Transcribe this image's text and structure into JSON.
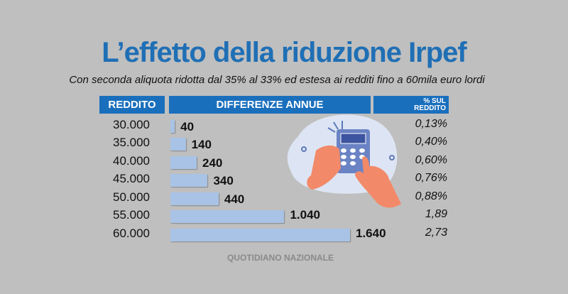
{
  "chart_data": {
    "type": "bar",
    "title": "L’effetto della riduzione Irpef",
    "subtitle": "Con seconda aliquota ridotta dal 35% al 33% ed estesa ai redditi fino a 60mila euro lordi",
    "headers": [
      "REDDITO",
      "DIFFERENZE ANNUE",
      "% SUL REDDITO"
    ],
    "categories": [
      "30.000",
      "35.000",
      "40.000",
      "45.000",
      "50.000",
      "55.000",
      "60.000"
    ],
    "values": [
      40,
      140,
      240,
      340,
      440,
      1040,
      1640
    ],
    "value_labels": [
      "40",
      "140",
      "240",
      "340",
      "440",
      "1.040",
      "1.640"
    ],
    "percent_labels": [
      "0,13%",
      "0,40%",
      "0,60%",
      "0,76%",
      "0,88%",
      "1,89",
      "2,73"
    ],
    "source": "QUOTIDIANO NAZIONALE"
  },
  "colors": {
    "header": "#1a6fbd",
    "bar": "#a8c3e6",
    "title": "#1f6fb5"
  }
}
